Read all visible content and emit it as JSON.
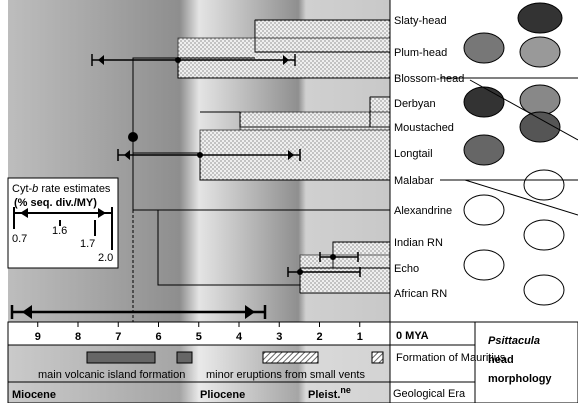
{
  "species": [
    "Slaty-head",
    "Plum-head",
    "Blossom-head",
    "Derbyan",
    "Moustached",
    "Longtail",
    "Malabar",
    "Alexandrine",
    "Indian RN",
    "Echo",
    "African RN"
  ],
  "axis": {
    "ticks": [
      9,
      8,
      7,
      6,
      5,
      4,
      3,
      2,
      1
    ],
    "zero_label": "0 MYA"
  },
  "inset": {
    "title_a": "Cyt-",
    "title_b": "b",
    "title_c": " rate estimates",
    "subtitle": "(% seq. div./MY)",
    "rates": [
      "0.7",
      "1.6",
      "1.7",
      "2.0"
    ]
  },
  "formation": {
    "label": "Formation of Mauritius",
    "main": "main volcanic island formation",
    "minor": "minor eruptions from small vents"
  },
  "era": {
    "label": "Geological Era",
    "miocene": "Miocene",
    "pliocene": "Pliocene",
    "pleist": "Pleist.",
    "pleist_sup": "ne"
  },
  "morphology": {
    "genus": "Psittacula",
    "line2": "head",
    "line3": "morphology"
  }
}
